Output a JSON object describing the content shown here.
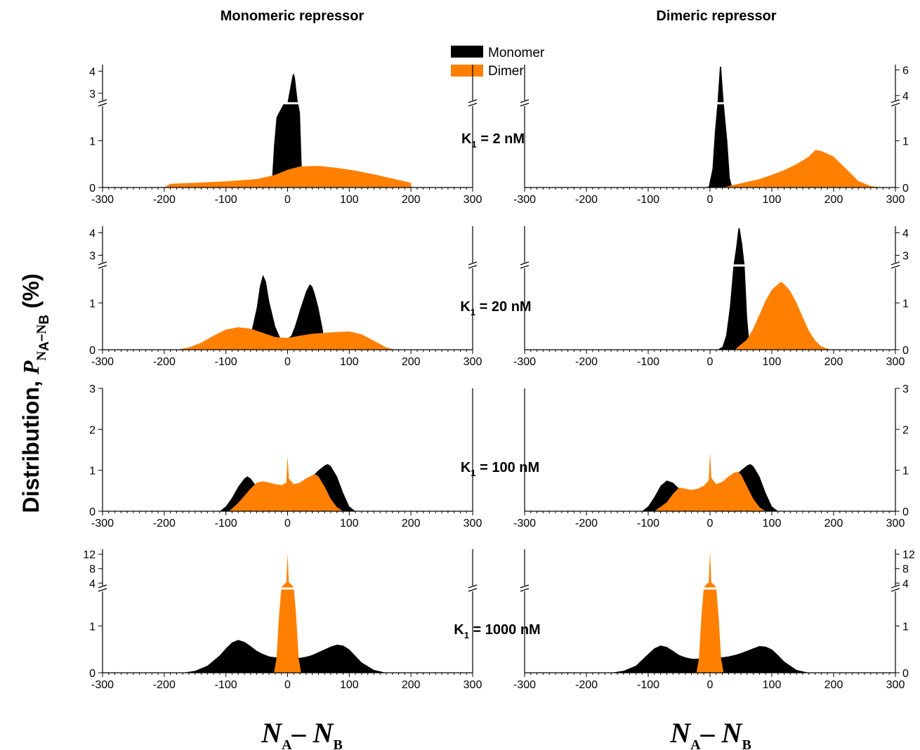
{
  "titles": {
    "left": "Monomeric repressor",
    "right": "Dimeric repressor"
  },
  "legend": {
    "monomer": "Monomer",
    "dimer": "Dimer"
  },
  "colors": {
    "monomer": "#000000",
    "dimer": "#ff8000"
  },
  "y_axis_label": {
    "prefix": "Distribution, ",
    "symbol": "P",
    "sub_a": "N",
    "sub_a_sub": "A",
    "dash": "–",
    "sub_b": "N",
    "sub_b_sub": "B",
    "suffix": " (%)"
  },
  "x_axis_label": {
    "n1": "N",
    "s1": "A",
    "dash": "– ",
    "n2": "N",
    "s2": "B"
  },
  "chart_data": [
    {
      "type": "area",
      "row": 0,
      "column": "left",
      "k_label": "K1 = 2 nM",
      "xlim": [
        -300,
        300
      ],
      "x_ticks": [
        -300,
        -200,
        -100,
        0,
        100,
        200,
        300
      ],
      "y_lower_ticks": [
        0,
        1
      ],
      "y_upper_ticks": [
        3,
        4
      ],
      "axis_break": true,
      "series": [
        {
          "name": "Monomer",
          "x": [
            -26,
            -22,
            -18,
            -14,
            -10,
            -6,
            -2,
            0,
            4,
            8,
            10,
            12,
            16,
            20,
            24
          ],
          "y": [
            0,
            0.9,
            1.5,
            1.6,
            1.7,
            1.8,
            2.2,
            2.6,
            3.2,
            3.8,
            3.9,
            3.7,
            2.7,
            1.6,
            0
          ]
        },
        {
          "name": "Dimer",
          "x": [
            -200,
            -190,
            -150,
            -100,
            -50,
            -20,
            0,
            20,
            50,
            80,
            110,
            140,
            170,
            200,
            201
          ],
          "y": [
            0,
            0.08,
            0.1,
            0.13,
            0.18,
            0.27,
            0.38,
            0.45,
            0.46,
            0.42,
            0.36,
            0.28,
            0.19,
            0.1,
            0
          ]
        }
      ]
    },
    {
      "type": "area",
      "row": 0,
      "column": "right",
      "k_label": "",
      "xlim": [
        -300,
        300
      ],
      "x_ticks": [
        -300,
        -200,
        -100,
        0,
        100,
        200,
        300
      ],
      "y_lower_ticks": [
        0,
        1
      ],
      "y_upper_ticks": [
        4,
        6
      ],
      "axis_break": true,
      "series": [
        {
          "name": "Monomer",
          "x": [
            -10,
            -2,
            4,
            8,
            12,
            16,
            18,
            22,
            28,
            32,
            36
          ],
          "y": [
            0,
            0.02,
            0.4,
            1.2,
            2.8,
            6.7,
            6.5,
            3.5,
            1.0,
            0.2,
            0
          ]
        },
        {
          "name": "Dimer",
          "x": [
            20,
            40,
            60,
            80,
            100,
            120,
            140,
            160,
            170,
            180,
            200,
            220,
            240,
            260,
            280
          ],
          "y": [
            0,
            0.06,
            0.12,
            0.18,
            0.27,
            0.37,
            0.5,
            0.66,
            0.8,
            0.78,
            0.66,
            0.4,
            0.14,
            0.03,
            0
          ]
        }
      ]
    },
    {
      "type": "area",
      "row": 1,
      "column": "left",
      "k_label": "K1 = 20 nM",
      "xlim": [
        -300,
        300
      ],
      "x_ticks": [
        -300,
        -200,
        -100,
        0,
        100,
        200,
        300
      ],
      "y_lower_ticks": [
        0,
        1
      ],
      "y_upper_ticks": [
        3,
        4
      ],
      "axis_break": true,
      "series": [
        {
          "name": "Monomer",
          "x": [
            -60,
            -50,
            -45,
            -40,
            -35,
            -30,
            -20,
            -12,
            -6,
            0,
            6,
            12,
            20,
            30,
            36,
            40,
            44,
            50,
            56,
            60,
            66
          ],
          "y": [
            0.3,
            0.9,
            1.35,
            1.6,
            1.45,
            1.05,
            0.5,
            0.25,
            0.24,
            0.24,
            0.3,
            0.5,
            0.85,
            1.25,
            1.4,
            1.35,
            1.2,
            0.9,
            0.5,
            0.2,
            0
          ]
        },
        {
          "name": "Dimer",
          "x": [
            -180,
            -160,
            -140,
            -120,
            -100,
            -80,
            -60,
            -40,
            -20,
            0,
            20,
            40,
            60,
            80,
            100,
            120,
            140,
            160,
            175
          ],
          "y": [
            0,
            0.05,
            0.15,
            0.3,
            0.43,
            0.48,
            0.45,
            0.36,
            0.27,
            0.25,
            0.3,
            0.34,
            0.36,
            0.38,
            0.39,
            0.33,
            0.19,
            0.05,
            0
          ]
        }
      ]
    },
    {
      "type": "area",
      "row": 1,
      "column": "right",
      "k_label": "",
      "xlim": [
        -300,
        300
      ],
      "x_ticks": [
        -300,
        -200,
        -100,
        0,
        100,
        200,
        300
      ],
      "y_lower_ticks": [
        0,
        1
      ],
      "y_upper_ticks": [
        3,
        4
      ],
      "axis_break": true,
      "series": [
        {
          "name": "Monomer",
          "x": [
            12,
            20,
            26,
            32,
            38,
            42,
            46,
            48,
            52,
            56,
            60,
            64,
            70
          ],
          "y": [
            0,
            0.06,
            0.3,
            0.9,
            2.0,
            3.3,
            4.2,
            4.3,
            3.5,
            2.0,
            0.7,
            0.1,
            0
          ]
        },
        {
          "name": "Dimer",
          "x": [
            40,
            60,
            70,
            80,
            90,
            100,
            110,
            115,
            120,
            130,
            140,
            150,
            160,
            170,
            180,
            195
          ],
          "y": [
            0,
            0.22,
            0.45,
            0.75,
            1.05,
            1.28,
            1.4,
            1.45,
            1.4,
            1.25,
            1.0,
            0.7,
            0.4,
            0.2,
            0.07,
            0
          ]
        }
      ]
    },
    {
      "type": "area",
      "row": 2,
      "column": "left",
      "k_label": "K1 = 100 nM",
      "xlim": [
        -300,
        300
      ],
      "x_ticks": [
        -300,
        -200,
        -100,
        0,
        100,
        200,
        300
      ],
      "y_ticks": [
        0,
        1,
        2,
        3
      ],
      "axis_break": false,
      "series": [
        {
          "name": "Monomer",
          "x": [
            -110,
            -100,
            -90,
            -80,
            -70,
            -65,
            -60,
            -50,
            -40,
            -20,
            0,
            20,
            40,
            50,
            60,
            65,
            70,
            80,
            90,
            100,
            110
          ],
          "y": [
            0,
            0.12,
            0.33,
            0.6,
            0.8,
            0.85,
            0.8,
            0.6,
            0.5,
            0.5,
            0.5,
            0.6,
            0.85,
            1.0,
            1.12,
            1.15,
            1.1,
            0.85,
            0.45,
            0.12,
            0
          ]
        },
        {
          "name": "Dimer",
          "x": [
            -95,
            -80,
            -60,
            -50,
            -40,
            -30,
            -20,
            -10,
            -2,
            0,
            2,
            10,
            20,
            30,
            40,
            45,
            50,
            60,
            70,
            80,
            90
          ],
          "y": [
            0,
            0.2,
            0.55,
            0.7,
            0.73,
            0.7,
            0.66,
            0.64,
            0.7,
            1.35,
            0.8,
            0.66,
            0.7,
            0.8,
            0.88,
            0.9,
            0.85,
            0.6,
            0.3,
            0.1,
            0
          ]
        }
      ]
    },
    {
      "type": "area",
      "row": 2,
      "column": "right",
      "k_label": "",
      "xlim": [
        -300,
        300
      ],
      "x_ticks": [
        -300,
        -200,
        -100,
        0,
        100,
        200,
        300
      ],
      "y_ticks": [
        0,
        1,
        2,
        3
      ],
      "axis_break": false,
      "series": [
        {
          "name": "Monomer",
          "x": [
            -110,
            -100,
            -90,
            -80,
            -70,
            -60,
            -50,
            -40,
            -20,
            0,
            20,
            40,
            50,
            60,
            65,
            70,
            80,
            90,
            100,
            110
          ],
          "y": [
            0,
            0.12,
            0.35,
            0.62,
            0.75,
            0.7,
            0.55,
            0.5,
            0.5,
            0.5,
            0.6,
            0.85,
            1.0,
            1.12,
            1.15,
            1.1,
            0.85,
            0.45,
            0.12,
            0
          ]
        },
        {
          "name": "Dimer",
          "x": [
            -90,
            -70,
            -60,
            -50,
            -40,
            -30,
            -20,
            -10,
            -2,
            0,
            2,
            10,
            20,
            30,
            40,
            45,
            50,
            60,
            70,
            80,
            90
          ],
          "y": [
            0,
            0.22,
            0.42,
            0.58,
            0.55,
            0.52,
            0.55,
            0.62,
            0.75,
            1.45,
            0.82,
            0.66,
            0.72,
            0.85,
            0.95,
            0.96,
            0.9,
            0.6,
            0.3,
            0.1,
            0
          ]
        }
      ]
    },
    {
      "type": "area",
      "row": 3,
      "column": "left",
      "k_label": "K1 = 1000 nM",
      "xlim": [
        -300,
        300
      ],
      "x_ticks": [
        -300,
        -200,
        -100,
        0,
        100,
        200,
        300
      ],
      "y_lower_ticks": [
        0,
        1
      ],
      "y_upper_ticks": [
        4,
        8,
        12
      ],
      "axis_break": true,
      "series": [
        {
          "name": "Monomer",
          "x": [
            -170,
            -150,
            -130,
            -110,
            -100,
            -90,
            -80,
            -70,
            -60,
            -50,
            -40,
            -30,
            -20,
            0,
            20,
            30,
            40,
            50,
            60,
            70,
            80,
            90,
            100,
            110,
            120,
            140,
            160
          ],
          "y": [
            0,
            0.04,
            0.15,
            0.37,
            0.52,
            0.65,
            0.7,
            0.66,
            0.57,
            0.47,
            0.4,
            0.35,
            0.33,
            0.32,
            0.32,
            0.34,
            0.38,
            0.44,
            0.5,
            0.56,
            0.6,
            0.58,
            0.5,
            0.36,
            0.22,
            0.06,
            0
          ]
        },
        {
          "name": "Dimer",
          "x": [
            -22,
            -18,
            -14,
            -10,
            -6,
            -4,
            -2,
            0,
            2,
            4,
            6,
            10,
            14,
            18,
            22
          ],
          "y": [
            0,
            0.3,
            1.2,
            2.8,
            3.6,
            3.9,
            4.2,
            12.0,
            4.2,
            3.9,
            3.6,
            2.8,
            1.2,
            0.3,
            0
          ]
        }
      ]
    },
    {
      "type": "area",
      "row": 3,
      "column": "right",
      "k_label": "",
      "xlim": [
        -300,
        300
      ],
      "x_ticks": [
        -300,
        -200,
        -100,
        0,
        100,
        200,
        300
      ],
      "y_lower_ticks": [
        0,
        1
      ],
      "y_upper_ticks": [
        4,
        8,
        12
      ],
      "axis_break": true,
      "series": [
        {
          "name": "Monomer",
          "x": [
            -160,
            -140,
            -120,
            -100,
            -90,
            -80,
            -70,
            -60,
            -50,
            -40,
            -30,
            -20,
            0,
            20,
            30,
            40,
            50,
            60,
            70,
            80,
            90,
            100,
            110,
            120,
            140,
            160
          ],
          "y": [
            0,
            0.04,
            0.15,
            0.4,
            0.52,
            0.58,
            0.55,
            0.47,
            0.38,
            0.33,
            0.3,
            0.3,
            0.31,
            0.33,
            0.35,
            0.38,
            0.42,
            0.47,
            0.52,
            0.57,
            0.56,
            0.5,
            0.38,
            0.24,
            0.06,
            0
          ]
        },
        {
          "name": "Dimer",
          "x": [
            -22,
            -18,
            -14,
            -10,
            -6,
            -4,
            -2,
            0,
            2,
            4,
            6,
            10,
            14,
            18,
            22
          ],
          "y": [
            0,
            0.3,
            1.2,
            2.8,
            3.6,
            3.9,
            4.2,
            13.2,
            4.2,
            3.9,
            3.6,
            2.8,
            1.2,
            0.3,
            0
          ]
        }
      ]
    }
  ]
}
